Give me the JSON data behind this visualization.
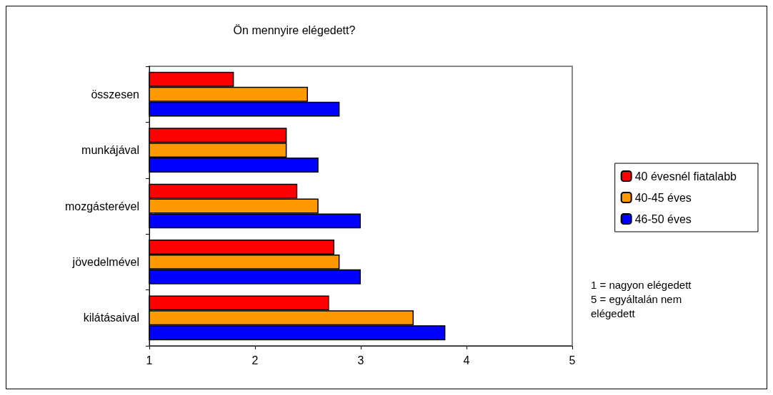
{
  "chart_data": {
    "type": "bar",
    "orientation": "horizontal",
    "title": "Ön mennyire elégedett?",
    "categories": [
      "összesen",
      "munkájával",
      "mozgásterével",
      "jövedelmével",
      "kilátásaival"
    ],
    "series": [
      {
        "name": "40 évesnél fiatalabb",
        "color": "#ff0000",
        "values": [
          1.8,
          2.3,
          2.4,
          2.75,
          2.7
        ]
      },
      {
        "name": "40-45 éves",
        "color": "#ff9900",
        "values": [
          2.5,
          2.3,
          2.6,
          2.8,
          3.5
        ]
      },
      {
        "name": "46-50 éves",
        "color": "#0000ff",
        "values": [
          2.8,
          2.6,
          3.0,
          3.0,
          3.8
        ]
      }
    ],
    "xlim": [
      1,
      5
    ],
    "xticks": [
      1,
      2,
      3,
      4,
      5
    ],
    "grid": false,
    "legend": "right",
    "annotations": [
      "1 = nagyon elégedett",
      "5 = egyáltalán nem elégedett"
    ]
  }
}
